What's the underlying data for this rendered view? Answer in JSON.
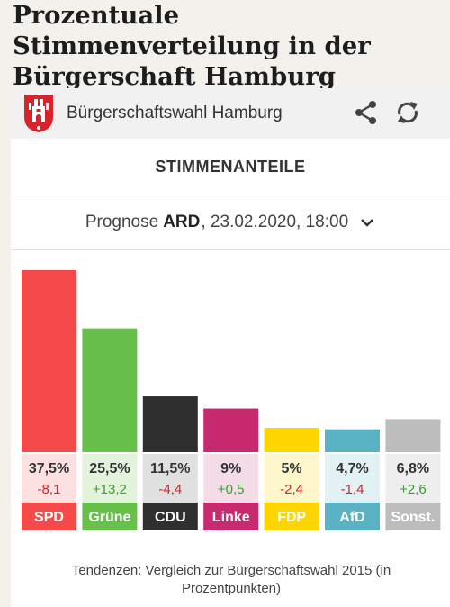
{
  "headline": "Prozentuale Stimmenverteilung in der Bürgerschaft Hamburg",
  "app": {
    "title": "Bürgerschaftswahl Hamburg"
  },
  "section": {
    "title": "STIMMENANTEILE"
  },
  "prognose": {
    "label": "Prognose",
    "source": "ARD",
    "datetime": ", 23.02.2020, 18:00"
  },
  "footnote": "Tendenzen: Vergleich zur Bürgerschaftswahl 2015 (in Prozentpunkten)",
  "colors": {
    "positive": "#3a9b32",
    "negative": "#d8232a"
  },
  "chart_data": {
    "type": "bar",
    "categories": [
      "SPD",
      "Grüne",
      "CDU",
      "Linke",
      "FDP",
      "AfD",
      "Sonst."
    ],
    "values": [
      37.5,
      25.5,
      11.5,
      9,
      5,
      4.7,
      6.8
    ],
    "value_labels": [
      "37,5%",
      "25,5%",
      "11,5%",
      "9%",
      "5%",
      "4,7%",
      "6,8%"
    ],
    "changes": [
      -8.1,
      13.2,
      -4.4,
      0.5,
      -2.4,
      -1.4,
      2.6
    ],
    "change_labels": [
      "-8,1",
      "+13,2",
      "-4,4",
      "+0,5",
      "-2,4",
      "-1,4",
      "+2,6"
    ],
    "colors": [
      "#f44a4a",
      "#67c04a",
      "#2f2f2f",
      "#c72a6e",
      "#ffd500",
      "#5ab3c4",
      "#bdbdbd"
    ],
    "tint_colors": [
      "#fde0e0",
      "#e3f3dc",
      "#e0e0e0",
      "#f5dde8",
      "#fff7cc",
      "#e1f1f4",
      "#eeeeee"
    ],
    "ylim": [
      0,
      40
    ]
  }
}
